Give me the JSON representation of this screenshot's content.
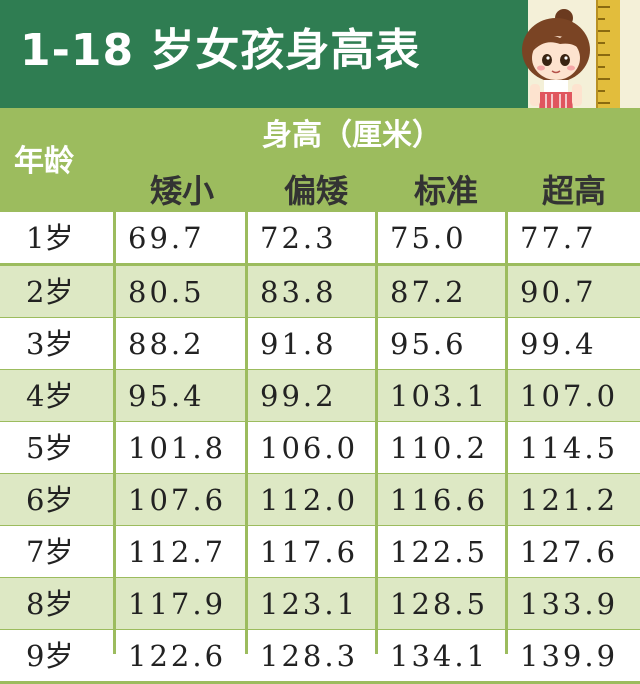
{
  "title": "1-18 岁女孩身高表",
  "header": {
    "age_label": "年龄",
    "height_label": "身高（厘米）",
    "columns": [
      "矮小",
      "偏矮",
      "标准",
      "超高"
    ]
  },
  "rows": [
    {
      "age": "1岁",
      "values": [
        "69.7",
        "72.3",
        "75.0",
        "77.7"
      ]
    },
    {
      "age": "2岁",
      "values": [
        "80.5",
        "83.8",
        "87.2",
        "90.7"
      ]
    },
    {
      "age": "3岁",
      "values": [
        "88.2",
        "91.8",
        "95.6",
        "99.4"
      ]
    },
    {
      "age": "4岁",
      "values": [
        "95.4",
        "99.2",
        "103.1",
        "107.0"
      ]
    },
    {
      "age": "5岁",
      "values": [
        "101.8",
        "106.0",
        "110.2",
        "114.5"
      ]
    },
    {
      "age": "6岁",
      "values": [
        "107.6",
        "112.0",
        "116.6",
        "121.2"
      ]
    },
    {
      "age": "7岁",
      "values": [
        "112.7",
        "117.6",
        "122.5",
        "127.6"
      ]
    },
    {
      "age": "8岁",
      "values": [
        "117.9",
        "123.1",
        "128.5",
        "133.9"
      ]
    },
    {
      "age": "9岁",
      "values": [
        "122.6",
        "128.3",
        "134.1",
        "139.9"
      ]
    }
  ],
  "colors": {
    "banner": "#2f7d52",
    "header": "#9cbc5e",
    "row_alt": "#dde8c4"
  },
  "icons": [
    "girl-illustration",
    "ruler-icon"
  ]
}
